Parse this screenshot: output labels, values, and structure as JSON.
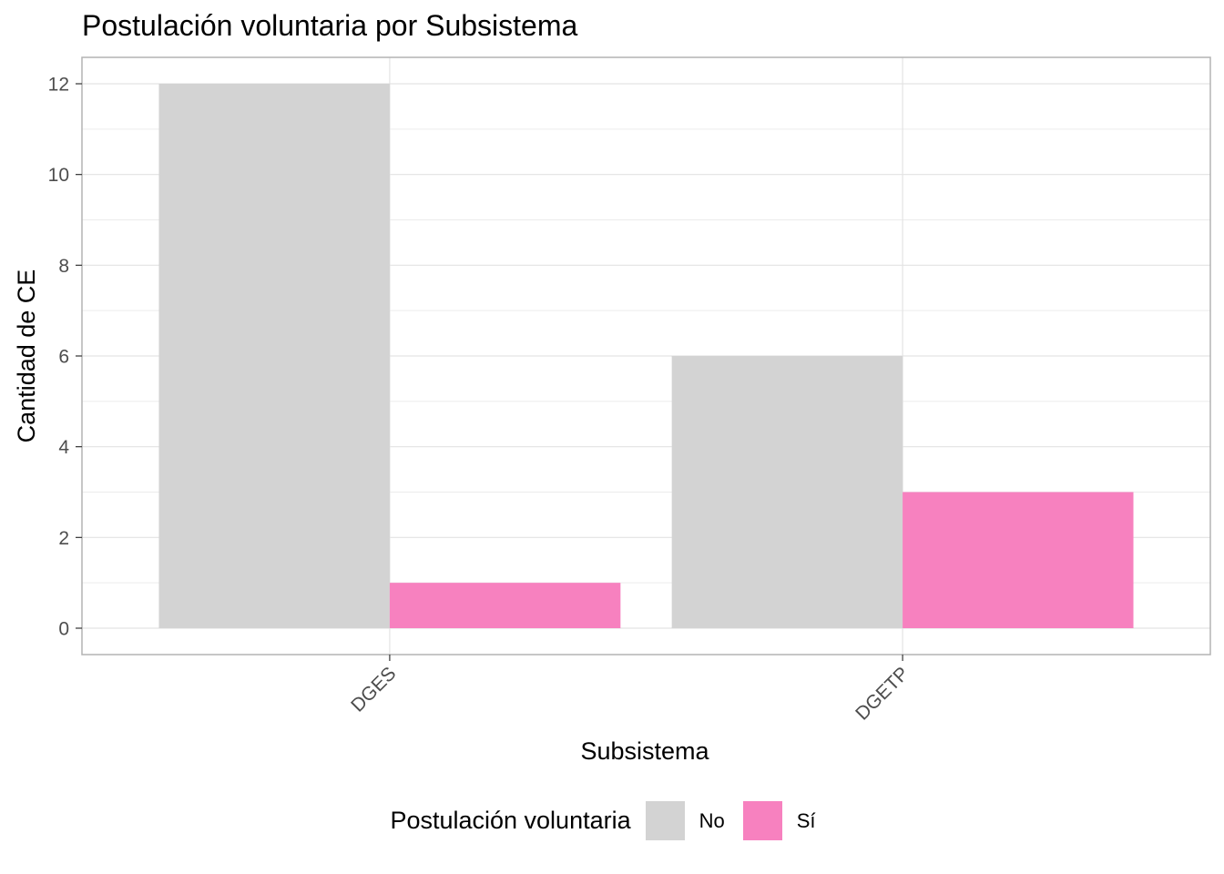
{
  "chart_data": {
    "type": "bar",
    "title": "Postulación voluntaria por Subsistema",
    "xlabel": "Subsistema",
    "ylabel": "Cantidad de CE",
    "categories": [
      "DGES",
      "DGETP"
    ],
    "series": [
      {
        "name": "No",
        "values": [
          12,
          6
        ],
        "color": "#d3d3d3"
      },
      {
        "name": "Sí",
        "values": [
          1,
          3
        ],
        "color": "#f781bf"
      }
    ],
    "ylim": [
      0,
      12.6
    ],
    "yticks": [
      0,
      2,
      4,
      6,
      8,
      10,
      12
    ],
    "legend_title": "Postulación voluntaria",
    "legend_position": "bottom",
    "grid": true
  }
}
